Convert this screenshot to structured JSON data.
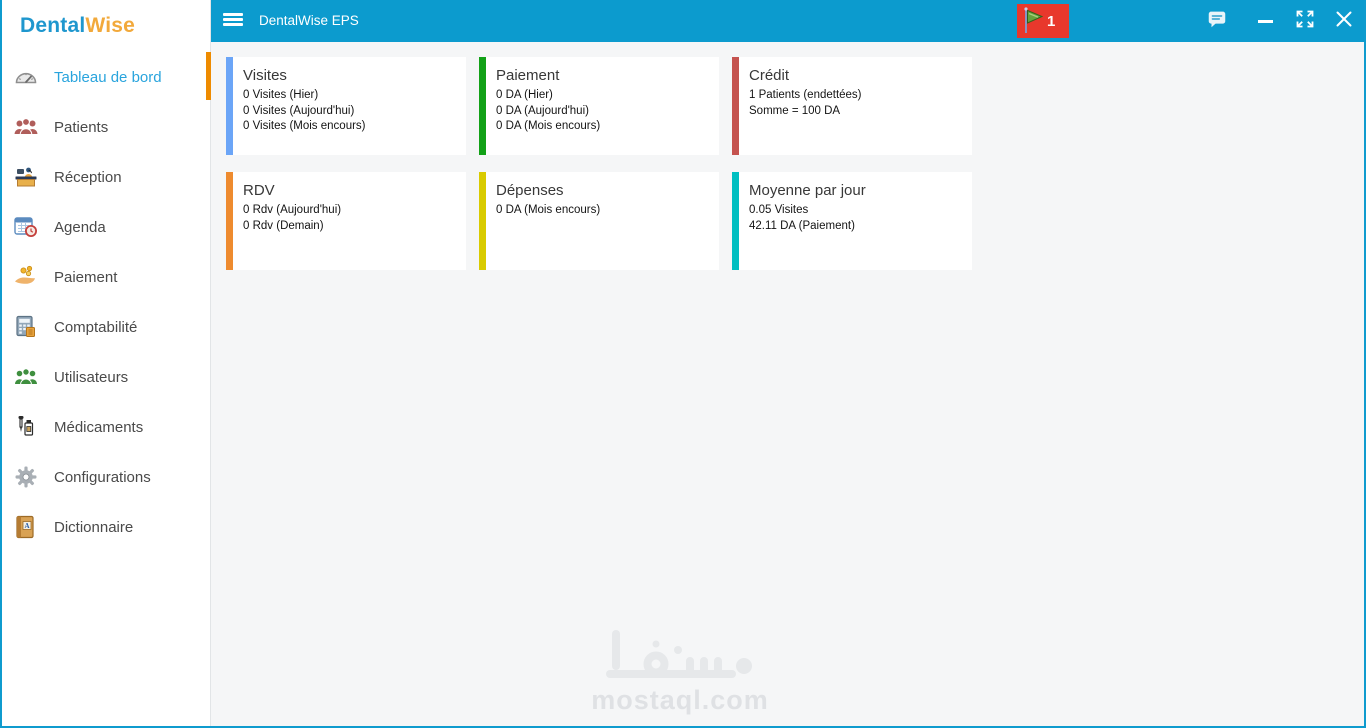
{
  "logo": {
    "part1": "Dental",
    "part2": "Wise",
    "part1_color": "#1f97ce",
    "part2_color": "#f2a93b"
  },
  "topbar": {
    "title": "DentalWise EPS",
    "background_color": "#0c9bce",
    "menu_icon": "hamburger-icon",
    "badge": {
      "count": "1",
      "color": "#e8382c",
      "icon": "flag-icon"
    },
    "window_buttons": [
      {
        "name": "chat",
        "icon": "chat-bubble-icon"
      },
      {
        "name": "minimize",
        "icon": "minimize-icon"
      },
      {
        "name": "maximize",
        "icon": "maximize-icon"
      },
      {
        "name": "close",
        "icon": "close-icon"
      }
    ]
  },
  "sidebar": {
    "active_indicator_color": "#ee8b00",
    "active_label_color": "#29a4dd",
    "items": [
      {
        "label": "Tableau de bord",
        "icon": "gauge-icon",
        "active": true
      },
      {
        "label": "Patients",
        "icon": "patients-icon",
        "active": false
      },
      {
        "label": "Réception",
        "icon": "reception-desk-icon",
        "active": false
      },
      {
        "label": "Agenda",
        "icon": "calendar-clock-icon",
        "active": false
      },
      {
        "label": "Paiement",
        "icon": "hand-coins-icon",
        "active": false
      },
      {
        "label": "Comptabilité",
        "icon": "calculator-icon",
        "active": false
      },
      {
        "label": "Utilisateurs",
        "icon": "users-group-icon",
        "active": false
      },
      {
        "label": "Médicaments",
        "icon": "medicine-bottles-icon",
        "active": false
      },
      {
        "label": "Configurations",
        "icon": "gear-icon",
        "active": false
      },
      {
        "label": "Dictionnaire",
        "icon": "dictionary-book-icon",
        "active": false
      }
    ]
  },
  "dashboard": {
    "cards": [
      {
        "title": "Visites",
        "accent_color": "#6ba5f7",
        "lines": [
          "0 Visites (Hier)",
          "0 Visites (Aujourd'hui)",
          "0 Visites (Mois encours)"
        ]
      },
      {
        "title": "Paiement",
        "accent_color": "#12a117",
        "lines": [
          "0 DA (Hier)",
          "0 DA (Aujourd'hui)",
          "0 DA (Mois encours)"
        ]
      },
      {
        "title": "Crédit",
        "accent_color": "#c5534f",
        "lines": [
          "1 Patients (endettées)",
          "Somme = 100 DA"
        ]
      },
      {
        "title": "RDV",
        "accent_color": "#ee8b2f",
        "lines": [
          "0 Rdv (Aujourd'hui)",
          "0 Rdv (Demain)"
        ]
      },
      {
        "title": "Dépenses",
        "accent_color": "#d9cb00",
        "lines": [
          "0 DA (Mois encours)"
        ]
      },
      {
        "title": "Moyenne par jour",
        "accent_color": "#00bfc1",
        "lines": [
          "0.05 Visites",
          "42.11 DA (Paiement)"
        ]
      }
    ]
  },
  "watermark": {
    "arabic": "مستقل",
    "domain": "mostaql.com"
  }
}
